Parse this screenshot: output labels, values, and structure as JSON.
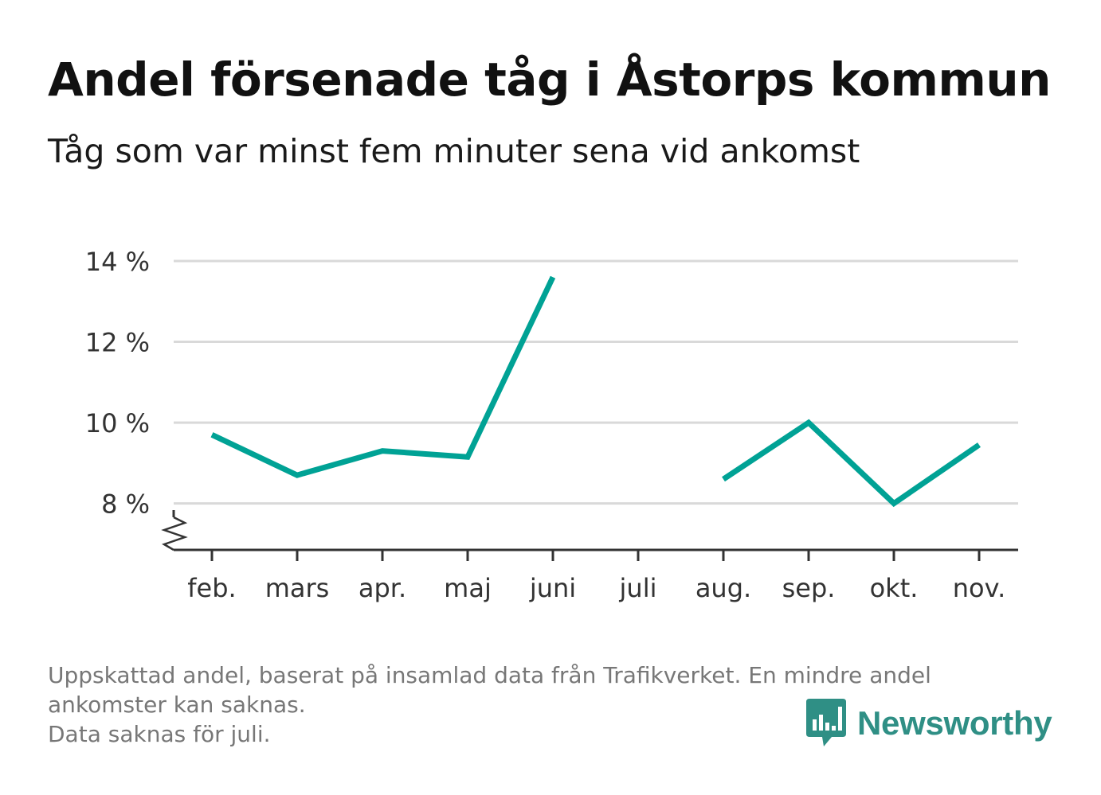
{
  "header": {
    "title": "Andel försenade tåg i Åstorps kommun",
    "subtitle": "Tåg som var minst fem minuter sena vid ankomst"
  },
  "chart_data": {
    "type": "line",
    "categories": [
      "feb.",
      "mars",
      "apr.",
      "maj",
      "juni",
      "juli",
      "aug.",
      "sep.",
      "okt.",
      "nov."
    ],
    "series": [
      {
        "values": [
          9.7,
          8.7,
          9.3,
          9.15,
          13.6,
          null,
          8.6,
          10.0,
          8.0,
          9.45
        ]
      }
    ],
    "y_ticks": [
      8,
      10,
      12,
      14
    ],
    "y_tick_labels": [
      "8 %",
      "10 %",
      "12 %",
      "14 %"
    ],
    "ylim": [
      6.85,
      14.0
    ],
    "axis_break": true,
    "grid": true,
    "line_color": "#00a295"
  },
  "footnote": {
    "lines": [
      "Uppskattad andel, baserat på insamlad data från Trafikverket. En mindre andel",
      "ankomster kan saknas.",
      "Data saknas för juli."
    ]
  },
  "brand": {
    "name": "Newsworthy",
    "icon": "newsworthy-logo-icon",
    "color": "#2f8f85"
  }
}
